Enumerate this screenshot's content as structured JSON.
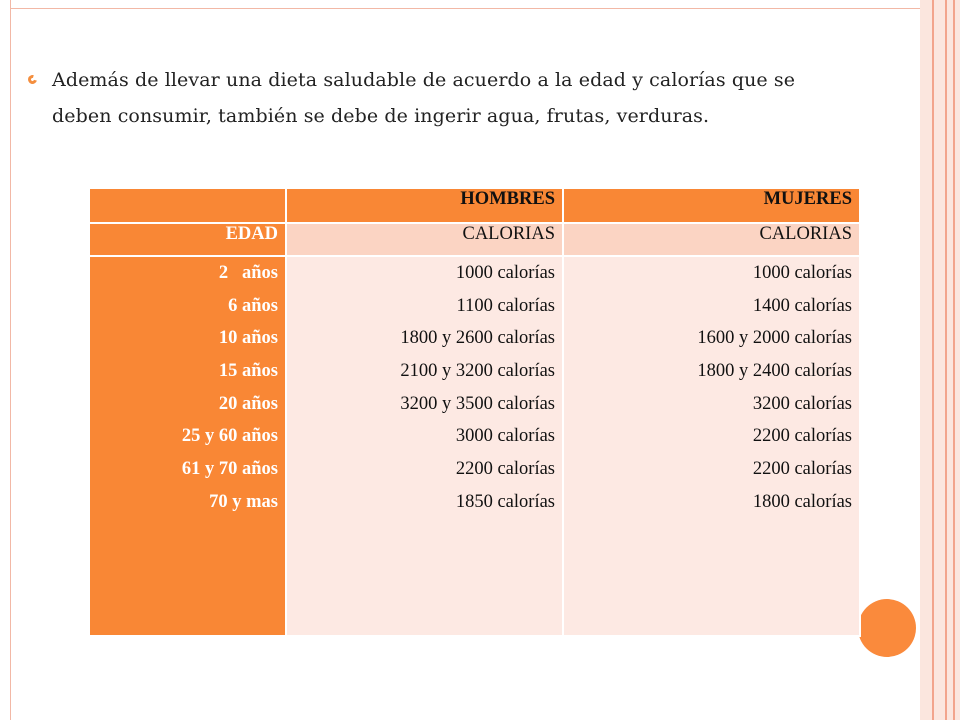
{
  "bullet": {
    "line1": "Además de llevar una dieta saludable de acuerdo a la edad y calorías que se",
    "line2": "deben consumir, también  se debe de ingerir agua, frutas, verduras."
  },
  "table": {
    "header": [
      "",
      "HOMBRES",
      "MUJERES"
    ],
    "subheader": [
      "EDAD",
      "CALORIAS",
      "CALORIAS"
    ],
    "ages": [
      "2   años",
      "6 años",
      "10 años",
      "15 años",
      "20 años",
      "25 y 60 años",
      "61 y 70 años",
      "70 y mas"
    ],
    "hombres": [
      "1000 calorías",
      "1100 calorías",
      "1800 y 2600 calorías",
      "2100 y 3200 calorías",
      "3200 y 3500 calorías",
      "3000 calorías",
      "2200 calorías",
      "1850 calorías"
    ],
    "mujeres": [
      "1000 calorías",
      "1400 calorías",
      "1600 y 2000 calorías",
      "1800 y 2400 calorías",
      "3200 calorías",
      "2200 calorías",
      "2200 calorías",
      "1800 calorías"
    ]
  },
  "colors": {
    "accent": "#f98735",
    "subheader_bg": "#fbd4c3",
    "body_bg": "#fde9e3"
  }
}
